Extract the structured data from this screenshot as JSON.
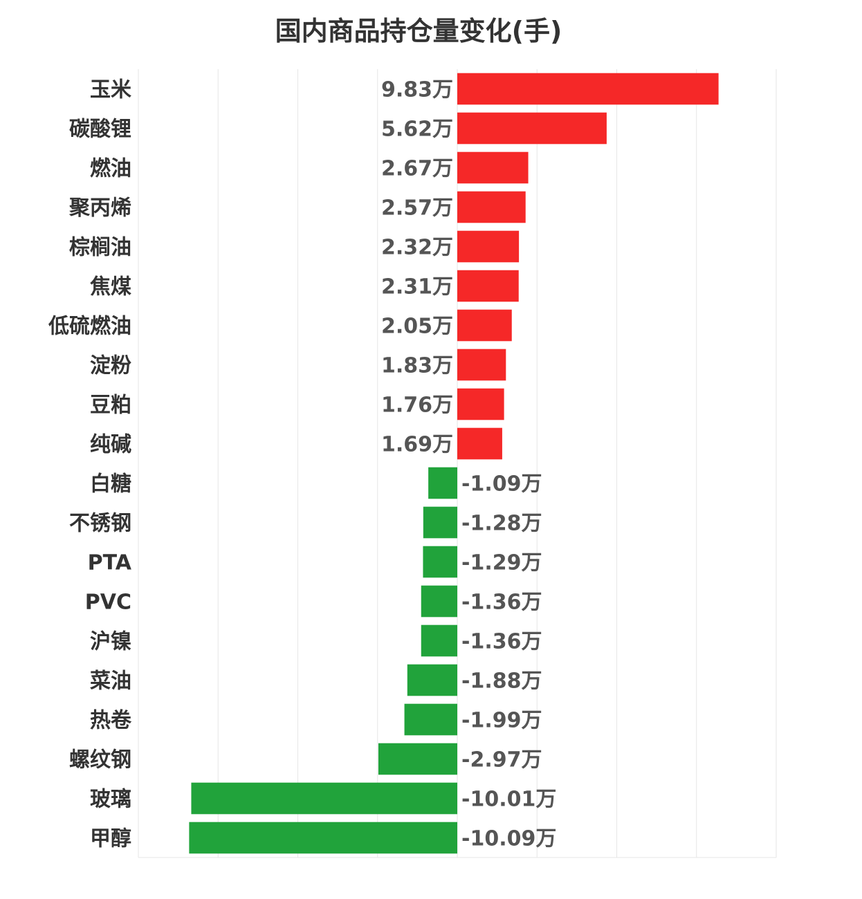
{
  "chart_data": {
    "type": "bar",
    "orientation": "horizontal",
    "title": "国内商品持仓量变化(手)",
    "categories": [
      "玉米",
      "碳酸锂",
      "燃油",
      "聚丙烯",
      "棕榈油",
      "焦煤",
      "低硫燃油",
      "淀粉",
      "豆粕",
      "纯碱",
      "白糖",
      "不锈钢",
      "PTA",
      "PVC",
      "沪镍",
      "菜油",
      "热卷",
      "螺纹钢",
      "玻璃",
      "甲醇"
    ],
    "values": [
      98300,
      56200,
      26700,
      25700,
      23200,
      23100,
      20500,
      18300,
      17600,
      16900,
      -10900,
      -12800,
      -12900,
      -13600,
      -13600,
      -18800,
      -19900,
      -29700,
      -100100,
      -100900
    ],
    "value_labels": [
      "9.83万",
      "5.62万",
      "2.67万",
      "2.57万",
      "2.32万",
      "2.31万",
      "2.05万",
      "1.83万",
      "1.76万",
      "1.69万",
      "-1.09万",
      "-1.28万",
      "-1.29万",
      "-1.36万",
      "-1.36万",
      "-1.88万",
      "-1.99万",
      "-2.97万",
      "-10.01万",
      "-10.09万"
    ],
    "xlim": [
      -120000,
      120000
    ],
    "grid": true,
    "legend": "none",
    "colors": {
      "positive": "#f52828",
      "negative": "#21a33b",
      "grid": "#e6e6e6"
    }
  }
}
